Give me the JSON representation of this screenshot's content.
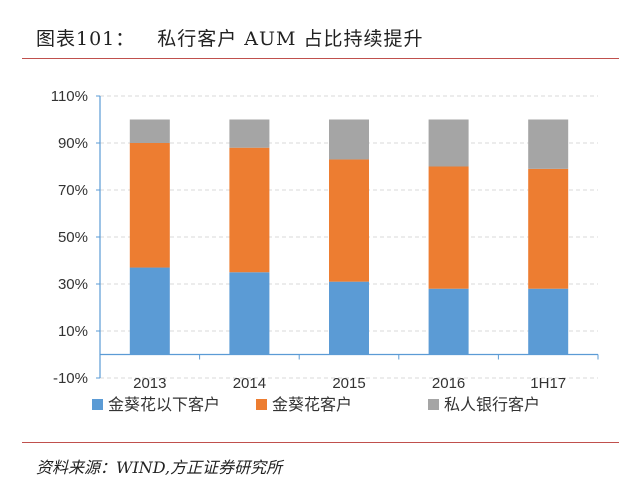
{
  "header": {
    "figure_label": "图表101：",
    "title": "私行客户 AUM 占比持续提升"
  },
  "source": "资料来源：WIND,方正证券研究所",
  "colors": {
    "rule": "#c0504d",
    "series": [
      "#5b9bd5",
      "#ed7d31",
      "#a5a5a5"
    ]
  },
  "chart_data": {
    "type": "bar",
    "stacked": true,
    "categories": [
      "2013",
      "2014",
      "2015",
      "2016",
      "1H17"
    ],
    "series": [
      {
        "name": "金葵花以下客户",
        "values": [
          37,
          35,
          31,
          28,
          28
        ]
      },
      {
        "name": "金葵花客户",
        "values": [
          53,
          53,
          52,
          52,
          51
        ]
      },
      {
        "name": "私人银行客户",
        "values": [
          10,
          12,
          17,
          20,
          21
        ]
      }
    ],
    "ylim": [
      -10,
      110
    ],
    "yticks": [
      -10,
      10,
      30,
      50,
      70,
      90,
      110
    ],
    "ytick_labels": [
      "-10%",
      "10%",
      "30%",
      "50%",
      "70%",
      "90%",
      "110%"
    ],
    "grid": true,
    "legend_position": "bottom"
  }
}
